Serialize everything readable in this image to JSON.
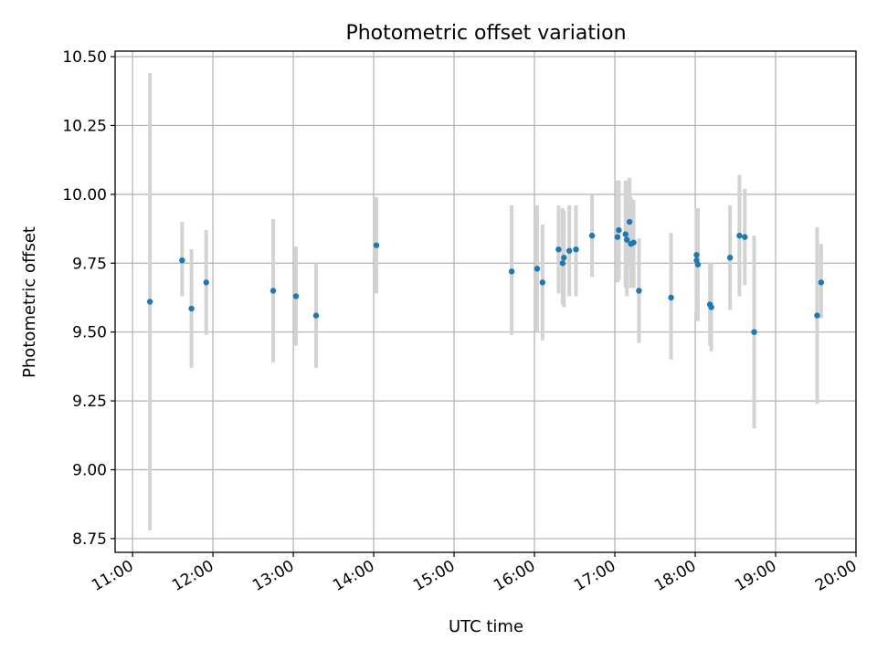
{
  "chart_data": {
    "type": "scatter",
    "title": "Photometric offset variation",
    "xlabel": "UTC time",
    "ylabel": "Photometric offset",
    "x_ticks": [
      "11:00",
      "12:00",
      "13:00",
      "14:00",
      "15:00",
      "16:00",
      "17:00",
      "18:00",
      "19:00",
      "20:00"
    ],
    "y_ticks": [
      "8.75",
      "9.00",
      "9.25",
      "9.50",
      "9.75",
      "10.00",
      "10.25",
      "10.50"
    ],
    "xlim": [
      "10:47",
      "20:00"
    ],
    "ylim": [
      8.7,
      10.52
    ],
    "grid": true,
    "colors": {
      "point": "#1f77b4",
      "errorbar": "#d3d3d3",
      "grid": "#b0b0b0"
    },
    "points": [
      {
        "t": "11:13",
        "y": 9.61,
        "lo": 8.78,
        "hi": 10.44
      },
      {
        "t": "11:37",
        "y": 9.76,
        "lo": 9.63,
        "hi": 9.9
      },
      {
        "t": "11:44",
        "y": 9.585,
        "lo": 9.37,
        "hi": 9.8
      },
      {
        "t": "11:55",
        "y": 9.68,
        "lo": 9.49,
        "hi": 9.87
      },
      {
        "t": "12:45",
        "y": 9.65,
        "lo": 9.39,
        "hi": 9.91
      },
      {
        "t": "13:02",
        "y": 9.63,
        "lo": 9.45,
        "hi": 9.81
      },
      {
        "t": "13:17",
        "y": 9.56,
        "lo": 9.37,
        "hi": 9.75
      },
      {
        "t": "14:02",
        "y": 9.815,
        "lo": 9.64,
        "hi": 9.99
      },
      {
        "t": "15:43",
        "y": 9.72,
        "lo": 9.49,
        "hi": 9.96
      },
      {
        "t": "16:02",
        "y": 9.73,
        "lo": 9.5,
        "hi": 9.96
      },
      {
        "t": "16:06",
        "y": 9.68,
        "lo": 9.47,
        "hi": 9.89
      },
      {
        "t": "16:18",
        "y": 9.8,
        "lo": 9.64,
        "hi": 9.96
      },
      {
        "t": "16:21",
        "y": 9.75,
        "lo": 9.6,
        "hi": 9.95
      },
      {
        "t": "16:22",
        "y": 9.77,
        "lo": 9.59,
        "hi": 9.94
      },
      {
        "t": "16:26",
        "y": 9.795,
        "lo": 9.63,
        "hi": 9.96
      },
      {
        "t": "16:31",
        "y": 9.8,
        "lo": 9.63,
        "hi": 9.96
      },
      {
        "t": "16:43",
        "y": 9.85,
        "lo": 9.7,
        "hi": 10.0
      },
      {
        "t": "17:02",
        "y": 9.845,
        "lo": 9.68,
        "hi": 10.05
      },
      {
        "t": "17:03",
        "y": 9.87,
        "lo": 9.69,
        "hi": 10.05
      },
      {
        "t": "17:08",
        "y": 9.855,
        "lo": 9.66,
        "hi": 10.05
      },
      {
        "t": "17:09",
        "y": 9.835,
        "lo": 9.63,
        "hi": 10.05
      },
      {
        "t": "17:11",
        "y": 9.9,
        "lo": 9.74,
        "hi": 10.06
      },
      {
        "t": "17:12",
        "y": 9.82,
        "lo": 9.66,
        "hi": 9.99
      },
      {
        "t": "17:14",
        "y": 9.825,
        "lo": 9.66,
        "hi": 9.98
      },
      {
        "t": "17:18",
        "y": 9.65,
        "lo": 9.46,
        "hi": 9.84
      },
      {
        "t": "17:42",
        "y": 9.625,
        "lo": 9.4,
        "hi": 9.86
      },
      {
        "t": "18:01",
        "y": 9.78,
        "lo": 9.61,
        "hi": 9.95
      },
      {
        "t": "18:01",
        "y": 9.76,
        "lo": 9.57,
        "hi": 9.95
      },
      {
        "t": "18:02",
        "y": 9.745,
        "lo": 9.54,
        "hi": 9.95
      },
      {
        "t": "18:11",
        "y": 9.6,
        "lo": 9.45,
        "hi": 9.75
      },
      {
        "t": "18:12",
        "y": 9.59,
        "lo": 9.43,
        "hi": 9.75
      },
      {
        "t": "18:26",
        "y": 9.77,
        "lo": 9.58,
        "hi": 9.96
      },
      {
        "t": "18:33",
        "y": 9.85,
        "lo": 9.63,
        "hi": 10.07
      },
      {
        "t": "18:37",
        "y": 9.845,
        "lo": 9.67,
        "hi": 10.02
      },
      {
        "t": "18:44",
        "y": 9.5,
        "lo": 9.15,
        "hi": 9.85
      },
      {
        "t": "19:31",
        "y": 9.56,
        "lo": 9.24,
        "hi": 9.88
      },
      {
        "t": "19:34",
        "y": 9.68,
        "lo": 9.55,
        "hi": 9.82
      }
    ]
  }
}
